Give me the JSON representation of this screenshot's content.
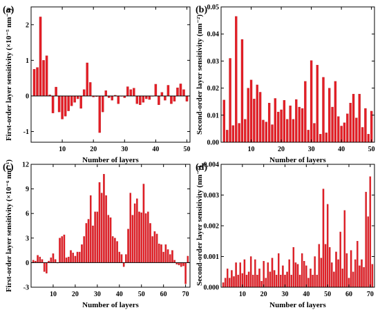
{
  "colors": {
    "bar": "#e41e26",
    "bar_edge": "#b0151a",
    "axis": "#000000"
  },
  "chart_data": [
    {
      "panel": "(a)",
      "type": "bar",
      "xlabel": "Number of layers",
      "ylabel": "First-order layer sensitivity (×10⁻⁵ nm⁻¹)",
      "xlim": [
        0,
        51
      ],
      "ylim": [
        -1.3,
        2.5
      ],
      "xticks": [
        10,
        20,
        30,
        40,
        50
      ],
      "yticks": [
        -1,
        0,
        1,
        2
      ],
      "zero_line": true,
      "x": [
        1,
        2,
        3,
        4,
        5,
        6,
        7,
        8,
        9,
        10,
        11,
        12,
        13,
        14,
        15,
        16,
        17,
        18,
        19,
        20,
        21,
        22,
        23,
        24,
        25,
        26,
        27,
        28,
        29,
        30,
        31,
        32,
        33,
        34,
        35,
        36,
        37,
        38,
        39,
        40,
        41,
        42,
        43,
        44,
        45,
        46,
        47,
        48,
        49,
        50
      ],
      "values": [
        0.75,
        0.8,
        2.22,
        1.0,
        1.13,
        0.03,
        -0.48,
        0.25,
        -0.45,
        -0.65,
        -0.57,
        -0.42,
        -0.28,
        -0.18,
        -0.08,
        -0.35,
        0.18,
        0.93,
        0.38,
        -0.03,
        -0.02,
        -1.03,
        -0.45,
        0.15,
        -0.05,
        -0.12,
        0.02,
        -0.22,
        0.0,
        -0.05,
        0.26,
        0.18,
        0.22,
        -0.22,
        -0.25,
        -0.18,
        -0.08,
        -0.1,
        0.0,
        0.33,
        -0.25,
        0.1,
        -0.12,
        0.3,
        -0.22,
        -0.15,
        0.23,
        0.34,
        0.18,
        -0.15
      ]
    },
    {
      "panel": "(b)",
      "type": "bar",
      "xlabel": "Number of layers",
      "ylabel": "Second-order layer sensitivity (nm⁻²)",
      "xlim": [
        0,
        51
      ],
      "ylim": [
        0,
        0.05
      ],
      "xticks": [
        10,
        20,
        30,
        40,
        50
      ],
      "yticks": [
        0.0,
        0.01,
        0.02,
        0.03,
        0.04,
        0.05
      ],
      "ytick_labels": [
        "0.00",
        "0.01",
        "0.02",
        "0.03",
        "0.04",
        "0.05"
      ],
      "zero_line": false,
      "x": [
        1,
        2,
        3,
        4,
        5,
        6,
        7,
        8,
        9,
        10,
        11,
        12,
        13,
        14,
        15,
        16,
        17,
        18,
        19,
        20,
        21,
        22,
        23,
        24,
        25,
        26,
        27,
        28,
        29,
        30,
        31,
        32,
        33,
        34,
        35,
        36,
        37,
        38,
        39,
        40,
        41,
        42,
        43,
        44,
        45,
        46,
        47,
        48,
        49,
        50
      ],
      "values": [
        0.0156,
        0.0045,
        0.031,
        0.0062,
        0.0465,
        0.007,
        0.038,
        0.0085,
        0.02,
        0.023,
        0.016,
        0.0212,
        0.0185,
        0.0082,
        0.0075,
        0.0145,
        0.0065,
        0.0162,
        0.0112,
        0.012,
        0.0155,
        0.0085,
        0.0135,
        0.0085,
        0.0158,
        0.013,
        0.0125,
        0.0225,
        0.0045,
        0.0302,
        0.007,
        0.0285,
        0.003,
        0.024,
        0.0035,
        0.02,
        0.013,
        0.0225,
        0.0095,
        0.006,
        0.0072,
        0.0105,
        0.0145,
        0.0178,
        0.009,
        0.0178,
        0.0055,
        0.0125,
        0.003,
        0.0115
      ]
    },
    {
      "panel": "(c)",
      "type": "bar",
      "xlabel": "Number of layers",
      "ylabel": "First-order layer sensitivity (×10⁻⁶ nm⁻¹)",
      "xlim": [
        0,
        72
      ],
      "ylim": [
        -3,
        12
      ],
      "xticks": [
        10,
        20,
        30,
        40,
        50,
        60,
        70
      ],
      "yticks": [
        -3,
        0,
        3,
        6,
        9,
        12
      ],
      "zero_line": true,
      "x": [
        1,
        2,
        3,
        4,
        5,
        6,
        7,
        8,
        9,
        10,
        11,
        12,
        13,
        14,
        15,
        16,
        17,
        18,
        19,
        20,
        21,
        22,
        23,
        24,
        25,
        26,
        27,
        28,
        29,
        30,
        31,
        32,
        33,
        34,
        35,
        36,
        37,
        38,
        39,
        40,
        41,
        42,
        43,
        44,
        45,
        46,
        47,
        48,
        49,
        50,
        51,
        52,
        53,
        54,
        55,
        56,
        57,
        58,
        59,
        60,
        61,
        62,
        63,
        64,
        65,
        66,
        67,
        68,
        69,
        70,
        71
      ],
      "values": [
        0.3,
        0.2,
        0.9,
        0.7,
        0.4,
        -1.1,
        -1.3,
        0.2,
        0.6,
        1.1,
        0.4,
        0.0,
        3.0,
        3.2,
        3.4,
        0.6,
        0.7,
        1.5,
        1.2,
        0.8,
        1.3,
        1.3,
        2.2,
        3.2,
        4.8,
        5.3,
        8.2,
        4.5,
        6.2,
        6.2,
        9.8,
        8.5,
        10.8,
        8.2,
        5.8,
        5.5,
        3.2,
        3.0,
        2.6,
        1.3,
        1.0,
        -0.5,
        1.0,
        4.1,
        8.5,
        5.8,
        7.2,
        7.8,
        6.2,
        6.1,
        9.6,
        6.0,
        6.2,
        4.8,
        3.2,
        3.8,
        3.5,
        2.3,
        2.2,
        1.3,
        2.2,
        1.6,
        1.0,
        1.5,
        0.3,
        -0.2,
        -0.3,
        -0.5,
        -0.4,
        -2.6,
        0.8
      ]
    },
    {
      "panel": "(d)",
      "type": "bar",
      "xlabel": "Number of layers",
      "ylabel": "Second-order layer sensitivity (nm⁻²)",
      "xlim": [
        0,
        72
      ],
      "ylim": [
        0,
        0.004
      ],
      "xticks": [
        10,
        20,
        30,
        40,
        50,
        60,
        70
      ],
      "yticks": [
        0.0,
        0.001,
        0.002,
        0.003,
        0.004
      ],
      "ytick_labels": [
        "0.000",
        "0.001",
        "0.002",
        "0.003",
        "0.004"
      ],
      "zero_line": false,
      "x": [
        1,
        2,
        3,
        4,
        5,
        6,
        7,
        8,
        9,
        10,
        11,
        12,
        13,
        14,
        15,
        16,
        17,
        18,
        19,
        20,
        21,
        22,
        23,
        24,
        25,
        26,
        27,
        28,
        29,
        30,
        31,
        32,
        33,
        34,
        35,
        36,
        37,
        38,
        39,
        40,
        41,
        42,
        43,
        44,
        45,
        46,
        47,
        48,
        49,
        50,
        51,
        52,
        53,
        54,
        55,
        56,
        57,
        58,
        59,
        60,
        61,
        62,
        63,
        64,
        65,
        66,
        67,
        68,
        69,
        70,
        71
      ],
      "values": [
        0.00015,
        0.0003,
        0.0006,
        0.0003,
        0.00055,
        0.00035,
        0.0008,
        0.0004,
        0.0008,
        0.00045,
        0.0009,
        0.0004,
        0.0005,
        0.001,
        0.0004,
        0.0009,
        0.0004,
        0.0006,
        0.0002,
        0.00085,
        0.0003,
        0.0008,
        0.0005,
        0.00095,
        0.00055,
        0.0004,
        0.0011,
        0.0004,
        0.0007,
        0.0004,
        0.0005,
        0.0009,
        0.0004,
        0.0013,
        0.0008,
        0.00075,
        0.0004,
        0.0011,
        0.00085,
        0.0007,
        0.0003,
        0.0006,
        0.0004,
        0.001,
        0.0004,
        0.0014,
        0.00095,
        0.0032,
        0.0014,
        0.0027,
        0.0013,
        0.0008,
        0.0005,
        0.00115,
        0.0009,
        0.0018,
        0.0006,
        0.0025,
        0.0011,
        0.0003,
        0.0012,
        0.0005,
        0.0009,
        0.0015,
        0.0007,
        0.0009,
        0.00065,
        0.0031,
        0.0023,
        0.0036,
        0.00075
      ]
    }
  ]
}
